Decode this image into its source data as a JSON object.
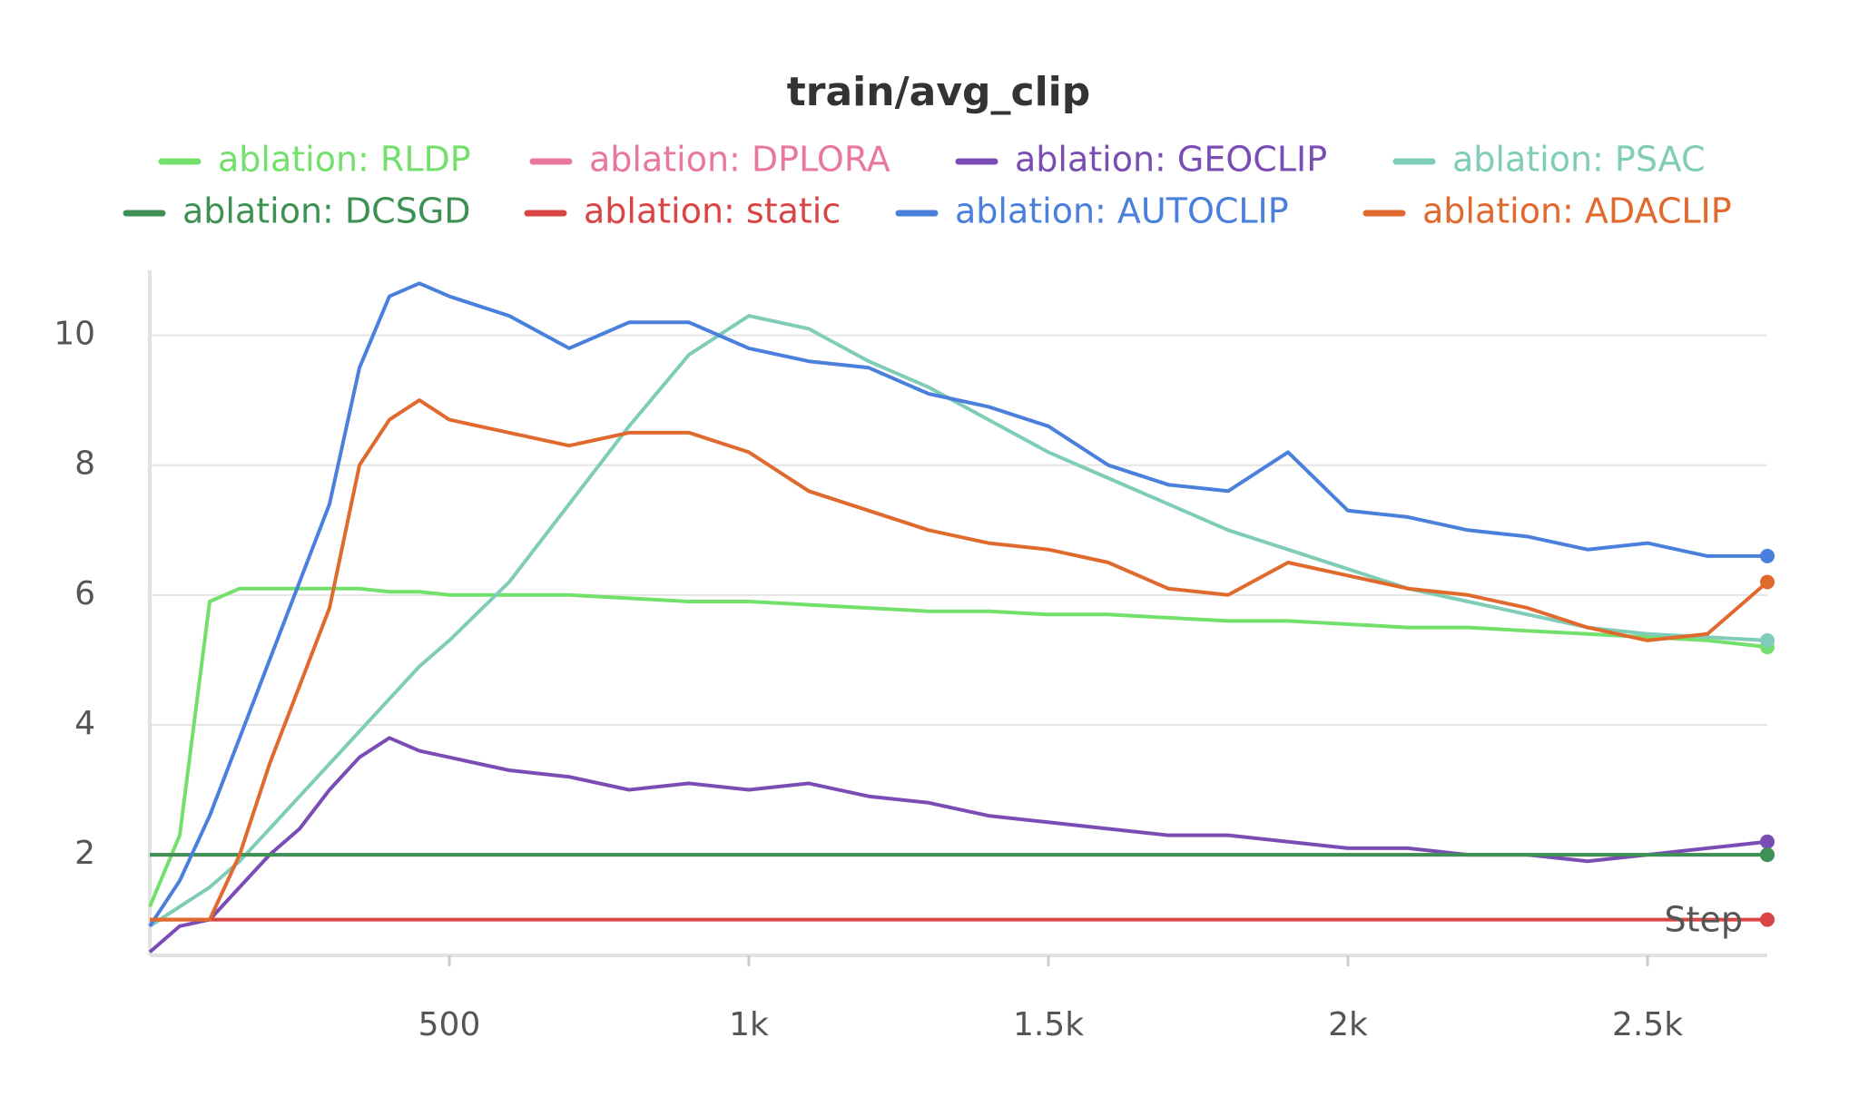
{
  "chart_data": {
    "type": "line",
    "title": "train/avg_clip",
    "x_label": "Step",
    "x": [
      0,
      50,
      100,
      150,
      200,
      250,
      300,
      350,
      400,
      450,
      500,
      600,
      700,
      800,
      900,
      1000,
      1100,
      1200,
      1300,
      1400,
      1500,
      1600,
      1700,
      1800,
      1900,
      2000,
      2100,
      2200,
      2300,
      2400,
      2500,
      2600,
      2700
    ],
    "xlim": [
      0,
      2700
    ],
    "xticks": [
      {
        "value": 500,
        "label": "500"
      },
      {
        "value": 1000,
        "label": "1k"
      },
      {
        "value": 1500,
        "label": "1.5k"
      },
      {
        "value": 2000,
        "label": "2k"
      },
      {
        "value": 2500,
        "label": "2.5k"
      }
    ],
    "ylim": [
      0.45,
      11
    ],
    "yticks": [
      2,
      4,
      6,
      8,
      10
    ],
    "grid": true,
    "series": [
      {
        "name": "ablation: RLDP",
        "color": "#74e06c",
        "values": [
          1.2,
          2.3,
          5.9,
          6.1,
          6.1,
          6.1,
          6.1,
          6.1,
          6.05,
          6.05,
          6.0,
          6.0,
          6.0,
          5.95,
          5.9,
          5.9,
          5.85,
          5.8,
          5.75,
          5.75,
          5.7,
          5.7,
          5.65,
          5.6,
          5.6,
          5.55,
          5.5,
          5.5,
          5.45,
          5.4,
          5.35,
          5.3,
          5.2
        ]
      },
      {
        "name": "ablation: DPLORA",
        "color": "#e8789c",
        "values": [
          2,
          2,
          2,
          2,
          2,
          2,
          2,
          2,
          2,
          2,
          2,
          2,
          2,
          2,
          2,
          2,
          2,
          2,
          2,
          2,
          2,
          2,
          2,
          2,
          2,
          2,
          2,
          2,
          2,
          2,
          2,
          2,
          2
        ]
      },
      {
        "name": "ablation: GEOCLIP",
        "color": "#7a4db5",
        "values": [
          0.5,
          0.9,
          1.0,
          1.5,
          2.0,
          2.4,
          3.0,
          3.5,
          3.8,
          3.6,
          3.5,
          3.3,
          3.2,
          3.0,
          3.1,
          3.0,
          3.1,
          2.9,
          2.8,
          2.6,
          2.5,
          2.4,
          2.3,
          2.3,
          2.2,
          2.1,
          2.1,
          2.0,
          2.0,
          1.9,
          2.0,
          2.1,
          2.2
        ]
      },
      {
        "name": "ablation: PSAC",
        "color": "#7fcdb8",
        "values": [
          0.9,
          1.2,
          1.5,
          1.9,
          2.4,
          2.9,
          3.4,
          3.9,
          4.4,
          4.9,
          5.3,
          6.2,
          7.4,
          8.6,
          9.7,
          10.3,
          10.1,
          9.6,
          9.2,
          8.7,
          8.2,
          7.8,
          7.4,
          7.0,
          6.7,
          6.4,
          6.1,
          5.9,
          5.7,
          5.5,
          5.4,
          5.35,
          5.3
        ]
      },
      {
        "name": "ablation: DCSGD",
        "color": "#3e9154",
        "values": [
          2,
          2,
          2,
          2,
          2,
          2,
          2,
          2,
          2,
          2,
          2,
          2,
          2,
          2,
          2,
          2,
          2,
          2,
          2,
          2,
          2,
          2,
          2,
          2,
          2,
          2,
          2,
          2,
          2,
          2,
          2,
          2,
          2
        ]
      },
      {
        "name": "ablation: static",
        "color": "#d94545",
        "values": [
          1,
          1,
          1,
          1,
          1,
          1,
          1,
          1,
          1,
          1,
          1,
          1,
          1,
          1,
          1,
          1,
          1,
          1,
          1,
          1,
          1,
          1,
          1,
          1,
          1,
          1,
          1,
          1,
          1,
          1,
          1,
          1,
          1
        ]
      },
      {
        "name": "ablation: AUTOCLIP",
        "color": "#4a80dc",
        "values": [
          0.9,
          1.6,
          2.6,
          3.8,
          5.0,
          6.2,
          7.4,
          9.5,
          10.6,
          10.8,
          10.6,
          10.3,
          9.8,
          10.2,
          10.2,
          9.8,
          9.6,
          9.5,
          9.1,
          8.9,
          8.6,
          8.0,
          7.7,
          7.6,
          8.2,
          7.3,
          7.2,
          7.0,
          6.9,
          6.7,
          6.8,
          6.6,
          6.6
        ]
      },
      {
        "name": "ablation: ADACLIP",
        "color": "#e0692e",
        "values": [
          1.0,
          1.0,
          1.0,
          2.0,
          3.4,
          4.6,
          5.8,
          8.0,
          8.7,
          9.0,
          8.7,
          8.5,
          8.3,
          8.5,
          8.5,
          8.2,
          7.6,
          7.3,
          7.0,
          6.8,
          6.7,
          6.5,
          6.1,
          6.0,
          6.5,
          6.3,
          6.1,
          6.0,
          5.8,
          5.5,
          5.3,
          5.4,
          6.2
        ]
      }
    ]
  }
}
